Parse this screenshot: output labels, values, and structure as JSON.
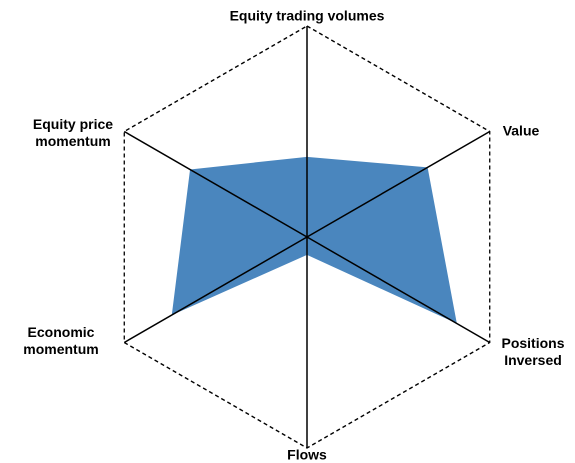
{
  "chart_data": {
    "type": "radar",
    "categories": [
      "Equity trading volumes",
      "Value",
      "Positions Inversed",
      "Flows",
      "Economic momentum",
      "Equity price momentum"
    ],
    "values": [
      0.38,
      0.66,
      0.82,
      0.085,
      0.74,
      0.64
    ],
    "color": "#4a86be",
    "ylim": [
      0,
      1
    ]
  }
}
